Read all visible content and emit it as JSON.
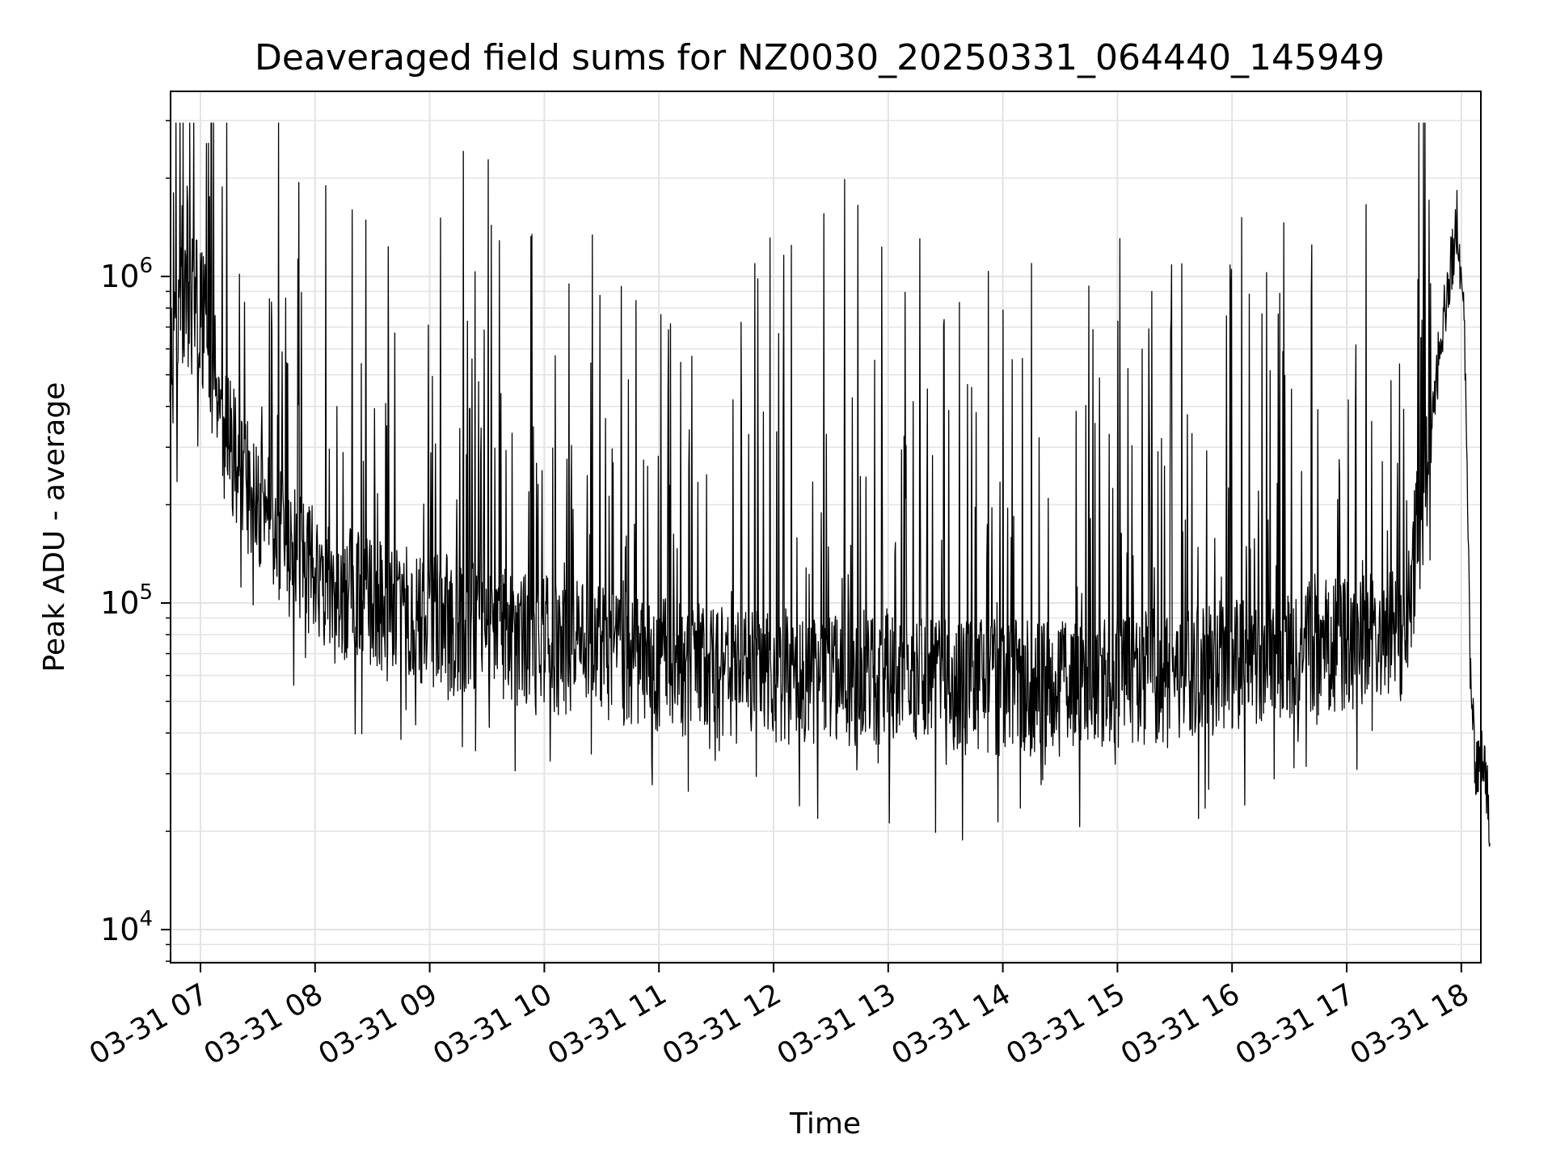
{
  "chart_data": {
    "type": "line",
    "title": "Deaveraged field sums for NZ0030_20250331_064440_145949",
    "xlabel": "Time",
    "ylabel": "Peak ADU - average",
    "y_scale": "log",
    "grid": true,
    "series": [
      {
        "color": "#000000",
        "x": [
          "2025-03-31 06:44",
          "2025-03-31 06:50",
          "2025-03-31 07:00",
          "2025-03-31 07:10",
          "2025-03-31 07:20",
          "2025-03-31 07:30",
          "2025-03-31 07:45",
          "2025-03-31 08:00",
          "2025-03-31 08:30",
          "2025-03-31 09:00",
          "2025-03-31 09:30",
          "2025-03-31 10:00",
          "2025-03-31 10:30",
          "2025-03-31 11:00",
          "2025-03-31 11:30",
          "2025-03-31 12:00",
          "2025-03-31 12:30",
          "2025-03-31 13:00",
          "2025-03-31 13:30",
          "2025-03-31 14:00",
          "2025-03-31 14:30",
          "2025-03-31 15:00",
          "2025-03-31 15:30",
          "2025-03-31 16:00",
          "2025-03-31 16:30",
          "2025-03-31 17:00",
          "2025-03-31 17:30",
          "2025-03-31 17:40",
          "2025-03-31 17:50",
          "2025-03-31 17:58",
          "2025-03-31 18:02",
          "2025-03-31 18:05",
          "2025-03-31 18:08",
          "2025-03-31 18:12",
          "2025-03-31 18:15"
        ],
        "values": [
          500000,
          800000,
          800000,
          400000,
          250000,
          200000,
          150000,
          120000,
          100000,
          90000,
          80000,
          75000,
          70000,
          65000,
          60000,
          60000,
          58000,
          60000,
          55000,
          55000,
          55000,
          58000,
          60000,
          65000,
          70000,
          75000,
          80000,
          200000,
          700000,
          1500000,
          600000,
          50000,
          30000,
          35000,
          20000
        ]
      }
    ]
  },
  "axes": {
    "x_ticks": [
      "03-31 07",
      "03-31 08",
      "03-31 09",
      "03-31 10",
      "03-31 11",
      "03-31 12",
      "03-31 13",
      "03-31 14",
      "03-31 15",
      "03-31 16",
      "03-31 17",
      "03-31 18"
    ],
    "y_ticks": [
      {
        "base": "10",
        "exp": "4"
      },
      {
        "base": "10",
        "exp": "5"
      },
      {
        "base": "10",
        "exp": "6"
      }
    ]
  }
}
